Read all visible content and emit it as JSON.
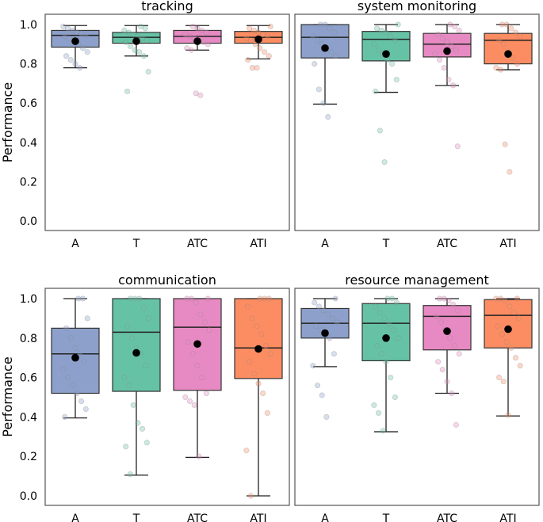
{
  "chart_data": {
    "type": "box",
    "ylabel": "Performance",
    "ylim": [
      -0.05,
      1.05
    ],
    "yticks": [
      "0.0",
      "0.2",
      "0.4",
      "0.6",
      "0.8",
      "1.0"
    ],
    "categories": [
      "A",
      "T",
      "ATC",
      "ATI"
    ],
    "colors": {
      "A": "#8da0cb",
      "T": "#66c2a5",
      "ATC": "#e78ac3",
      "ATI": "#fc8d62"
    },
    "panels": [
      {
        "title": "tracking",
        "boxes": [
          {
            "cat": "A",
            "whislo": 0.78,
            "q1": 0.885,
            "med": 0.945,
            "q3": 0.97,
            "whishi": 0.995,
            "mean": 0.915,
            "points": [
              0.99,
              0.98,
              0.97,
              0.96,
              0.955,
              0.95,
              0.94,
              0.93,
              0.92,
              0.9,
              0.88,
              0.86,
              0.84,
              0.82,
              0.8,
              0.78
            ]
          },
          {
            "cat": "T",
            "whislo": 0.84,
            "q1": 0.905,
            "med": 0.935,
            "q3": 0.96,
            "whishi": 0.995,
            "mean": 0.915,
            "points": [
              0.99,
              0.98,
              0.97,
              0.96,
              0.95,
              0.94,
              0.93,
              0.92,
              0.91,
              0.89,
              0.87,
              0.86,
              0.84,
              0.76,
              0.66
            ]
          },
          {
            "cat": "ATC",
            "whislo": 0.87,
            "q1": 0.905,
            "med": 0.94,
            "q3": 0.97,
            "whishi": 0.995,
            "mean": 0.915,
            "points": [
              0.99,
              0.98,
              0.97,
              0.96,
              0.95,
              0.94,
              0.93,
              0.92,
              0.91,
              0.9,
              0.88,
              0.87,
              0.65,
              0.64
            ]
          },
          {
            "cat": "ATI",
            "whislo": 0.825,
            "q1": 0.905,
            "med": 0.935,
            "q3": 0.965,
            "whishi": 0.995,
            "mean": 0.925,
            "points": [
              0.99,
              0.98,
              0.97,
              0.96,
              0.95,
              0.94,
              0.93,
              0.92,
              0.9,
              0.88,
              0.86,
              0.84,
              0.82,
              0.78,
              0.78
            ]
          }
        ]
      },
      {
        "title": "system monitoring",
        "boxes": [
          {
            "cat": "A",
            "whislo": 0.595,
            "q1": 0.83,
            "med": 0.935,
            "q3": 1.0,
            "whishi": 1.0,
            "mean": 0.88,
            "points": [
              1.0,
              1.0,
              0.98,
              0.96,
              0.94,
              0.92,
              0.9,
              0.88,
              0.86,
              0.84,
              0.8,
              0.67,
              0.6,
              0.53
            ]
          },
          {
            "cat": "T",
            "whislo": 0.655,
            "q1": 0.815,
            "med": 0.925,
            "q3": 0.965,
            "whishi": 1.0,
            "mean": 0.85,
            "points": [
              1.0,
              0.98,
              0.97,
              0.96,
              0.94,
              0.92,
              0.9,
              0.87,
              0.85,
              0.82,
              0.8,
              0.72,
              0.66,
              0.46,
              0.3
            ]
          },
          {
            "cat": "ATC",
            "whislo": 0.69,
            "q1": 0.835,
            "med": 0.9,
            "q3": 0.955,
            "whishi": 1.0,
            "mean": 0.865,
            "points": [
              1.0,
              0.99,
              0.97,
              0.95,
              0.93,
              0.91,
              0.89,
              0.87,
              0.85,
              0.82,
              0.78,
              0.72,
              0.69,
              0.38
            ]
          },
          {
            "cat": "ATI",
            "whislo": 0.77,
            "q1": 0.8,
            "med": 0.92,
            "q3": 0.955,
            "whishi": 1.0,
            "mean": 0.85,
            "points": [
              1.0,
              1.0,
              0.98,
              0.96,
              0.94,
              0.92,
              0.9,
              0.86,
              0.83,
              0.8,
              0.78,
              0.77,
              0.39,
              0.25
            ]
          }
        ]
      },
      {
        "title": "communication",
        "boxes": [
          {
            "cat": "A",
            "whislo": 0.395,
            "q1": 0.52,
            "med": 0.72,
            "q3": 0.85,
            "whishi": 1.0,
            "mean": 0.7,
            "points": [
              1.0,
              1.0,
              0.9,
              0.85,
              0.8,
              0.75,
              0.72,
              0.68,
              0.64,
              0.6,
              0.56,
              0.52,
              0.48,
              0.44,
              0.4
            ]
          },
          {
            "cat": "T",
            "whislo": 0.105,
            "q1": 0.53,
            "med": 0.83,
            "q3": 1.0,
            "whishi": 1.0,
            "mean": 0.725,
            "points": [
              1.0,
              1.0,
              1.0,
              0.95,
              0.9,
              0.86,
              0.8,
              0.75,
              0.72,
              0.66,
              0.6,
              0.56,
              0.46,
              0.37,
              0.34,
              0.27,
              0.25,
              0.11
            ]
          },
          {
            "cat": "ATC",
            "whislo": 0.195,
            "q1": 0.535,
            "med": 0.855,
            "q3": 1.0,
            "whishi": 1.0,
            "mean": 0.77,
            "points": [
              1.0,
              1.0,
              1.0,
              0.98,
              0.92,
              0.88,
              0.84,
              0.78,
              0.72,
              0.66,
              0.6,
              0.52,
              0.5,
              0.48,
              0.46,
              0.2
            ]
          },
          {
            "cat": "ATI",
            "whislo": 0.0,
            "q1": 0.595,
            "med": 0.75,
            "q3": 1.0,
            "whishi": 1.0,
            "mean": 0.745,
            "points": [
              1.0,
              1.0,
              1.0,
              0.96,
              0.9,
              0.86,
              0.82,
              0.76,
              0.72,
              0.68,
              0.62,
              0.57,
              0.52,
              0.42,
              0.23,
              0.0
            ]
          }
        ]
      },
      {
        "title": "resource management",
        "boxes": [
          {
            "cat": "A",
            "whislo": 0.655,
            "q1": 0.8,
            "med": 0.875,
            "q3": 0.95,
            "whishi": 1.0,
            "mean": 0.825,
            "points": [
              1.0,
              0.98,
              0.96,
              0.94,
              0.92,
              0.9,
              0.88,
              0.86,
              0.84,
              0.82,
              0.8,
              0.72,
              0.66,
              0.56,
              0.51,
              0.4
            ]
          },
          {
            "cat": "T",
            "whislo": 0.325,
            "q1": 0.685,
            "med": 0.875,
            "q3": 0.975,
            "whishi": 1.0,
            "mean": 0.8,
            "points": [
              1.0,
              1.0,
              0.98,
              0.96,
              0.93,
              0.9,
              0.87,
              0.84,
              0.8,
              0.76,
              0.72,
              0.68,
              0.6,
              0.5,
              0.46,
              0.42,
              0.33
            ]
          },
          {
            "cat": "ATC",
            "whislo": 0.52,
            "q1": 0.74,
            "med": 0.91,
            "q3": 0.965,
            "whishi": 1.0,
            "mean": 0.835,
            "points": [
              1.0,
              1.0,
              0.99,
              0.97,
              0.94,
              0.91,
              0.88,
              0.84,
              0.8,
              0.76,
              0.72,
              0.68,
              0.64,
              0.58,
              0.52,
              0.36
            ]
          },
          {
            "cat": "ATI",
            "whislo": 0.405,
            "q1": 0.75,
            "med": 0.915,
            "q3": 0.995,
            "whishi": 1.0,
            "mean": 0.845,
            "points": [
              1.0,
              1.0,
              1.0,
              0.99,
              0.96,
              0.93,
              0.9,
              0.86,
              0.82,
              0.78,
              0.75,
              0.7,
              0.66,
              0.6,
              0.58,
              0.41
            ]
          }
        ]
      }
    ]
  }
}
